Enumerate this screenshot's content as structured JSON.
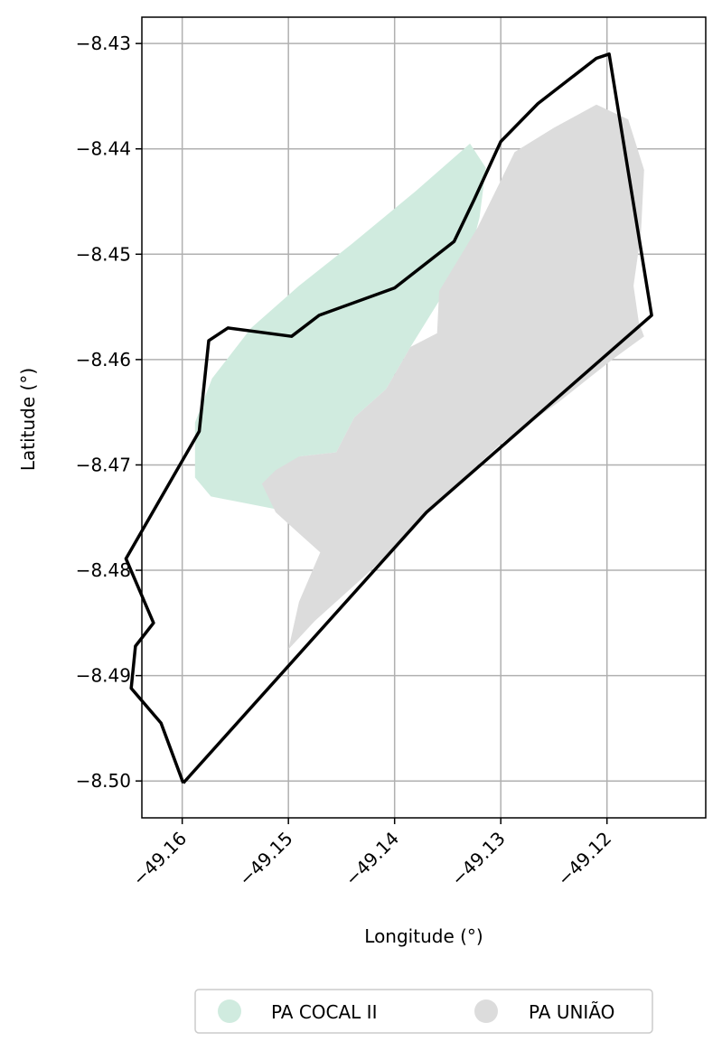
{
  "chart_data": {
    "type": "map",
    "title": "",
    "xlabel": "Longitude (°)",
    "ylabel": "Latitude (°)",
    "xlim": [
      -49.1638,
      -49.1107
    ],
    "ylim": [
      -8.5035,
      -8.4275
    ],
    "grid": true,
    "legend_position": "bottom-center",
    "x_ticks": [
      {
        "value": -49.16,
        "label": "−49.16"
      },
      {
        "value": -49.15,
        "label": "−49.15"
      },
      {
        "value": -49.14,
        "label": "−49.14"
      },
      {
        "value": -49.13,
        "label": "−49.13"
      },
      {
        "value": -49.12,
        "label": "−49.12"
      }
    ],
    "y_ticks": [
      {
        "value": -8.43,
        "label": "−8.43"
      },
      {
        "value": -8.44,
        "label": "−8.44"
      },
      {
        "value": -8.45,
        "label": "−8.45"
      },
      {
        "value": -8.46,
        "label": "−8.46"
      },
      {
        "value": -8.47,
        "label": "−8.47"
      },
      {
        "value": -8.48,
        "label": "−8.48"
      },
      {
        "value": -8.49,
        "label": "−8.49"
      },
      {
        "value": -8.5,
        "label": "−8.50"
      }
    ],
    "series": [
      {
        "name": "PA COCAL II",
        "color": "#d0ebdf",
        "kind": "polygon",
        "points": [
          [
            -49.1588,
            -8.4712
          ],
          [
            -49.1573,
            -8.473
          ],
          [
            -49.1512,
            -8.4742
          ],
          [
            -49.1487,
            -8.474
          ],
          [
            -49.149,
            -8.4692
          ],
          [
            -49.1455,
            -8.4688
          ],
          [
            -49.1438,
            -8.4655
          ],
          [
            -49.1408,
            -8.4628
          ],
          [
            -49.1385,
            -8.4588
          ],
          [
            -49.134,
            -8.4515
          ],
          [
            -49.1325,
            -8.4485
          ],
          [
            -49.132,
            -8.4465
          ],
          [
            -49.1314,
            -8.4418
          ],
          [
            -49.1329,
            -8.4395
          ],
          [
            -49.138,
            -8.444
          ],
          [
            -49.144,
            -8.449
          ],
          [
            -49.149,
            -8.453
          ],
          [
            -49.1535,
            -8.457
          ],
          [
            -49.1572,
            -8.4618
          ],
          [
            -49.1588,
            -8.466
          ]
        ]
      },
      {
        "name": "PA UNIÃO",
        "color": "#dcdcdc",
        "kind": "polygon",
        "points": [
          [
            -49.1512,
            -8.4705
          ],
          [
            -49.149,
            -8.4692
          ],
          [
            -49.1455,
            -8.4688
          ],
          [
            -49.1438,
            -8.4655
          ],
          [
            -49.1408,
            -8.4628
          ],
          [
            -49.1385,
            -8.4588
          ],
          [
            -49.136,
            -8.4575
          ],
          [
            -49.1358,
            -8.4535
          ],
          [
            -49.134,
            -8.4505
          ],
          [
            -49.1322,
            -8.4475
          ],
          [
            -49.13,
            -8.443
          ],
          [
            -49.1287,
            -8.4403
          ],
          [
            -49.125,
            -8.438
          ],
          [
            -49.121,
            -8.4358
          ],
          [
            -49.118,
            -8.4372
          ],
          [
            -49.1165,
            -8.442
          ],
          [
            -49.1168,
            -8.448
          ],
          [
            -49.1175,
            -8.453
          ],
          [
            -49.117,
            -8.4565
          ],
          [
            -49.1165,
            -8.4578
          ],
          [
            -49.1195,
            -8.46
          ],
          [
            -49.1245,
            -8.464
          ],
          [
            -49.13,
            -8.468
          ],
          [
            -49.137,
            -8.4745
          ],
          [
            -49.142,
            -8.4798
          ],
          [
            -49.1475,
            -8.4848
          ],
          [
            -49.15,
            -8.4875
          ],
          [
            -49.149,
            -8.483
          ],
          [
            -49.147,
            -8.4783
          ],
          [
            -49.149,
            -8.4765
          ],
          [
            -49.1512,
            -8.4745
          ],
          [
            -49.1525,
            -8.4718
          ]
        ]
      },
      {
        "name": "",
        "color": "#000000",
        "kind": "outline",
        "points": [
          [
            -49.1599,
            -8.5002
          ],
          [
            -49.162,
            -8.4945
          ],
          [
            -49.1648,
            -8.4912
          ],
          [
            -49.1644,
            -8.4872
          ],
          [
            -49.1627,
            -8.485
          ],
          [
            -49.1653,
            -8.4789
          ],
          [
            -49.1584,
            -8.4668
          ],
          [
            -49.1575,
            -8.4582
          ],
          [
            -49.1557,
            -8.457
          ],
          [
            -49.1497,
            -8.4578
          ],
          [
            -49.1471,
            -8.4558
          ],
          [
            -49.14,
            -8.4532
          ],
          [
            -49.1344,
            -8.4488
          ],
          [
            -49.1325,
            -8.4448
          ],
          [
            -49.13,
            -8.4393
          ],
          [
            -49.1265,
            -8.4357
          ],
          [
            -49.121,
            -8.4314
          ],
          [
            -49.1198,
            -8.431
          ],
          [
            -49.1158,
            -8.4558
          ],
          [
            -49.137,
            -8.4745
          ],
          [
            -49.1599,
            -8.5002
          ]
        ]
      }
    ]
  },
  "legend": {
    "items": [
      {
        "label": "PA COCAL II",
        "color": "#d0ebdf"
      },
      {
        "label": "PA UNIÃO",
        "color": "#dcdcdc"
      }
    ]
  }
}
